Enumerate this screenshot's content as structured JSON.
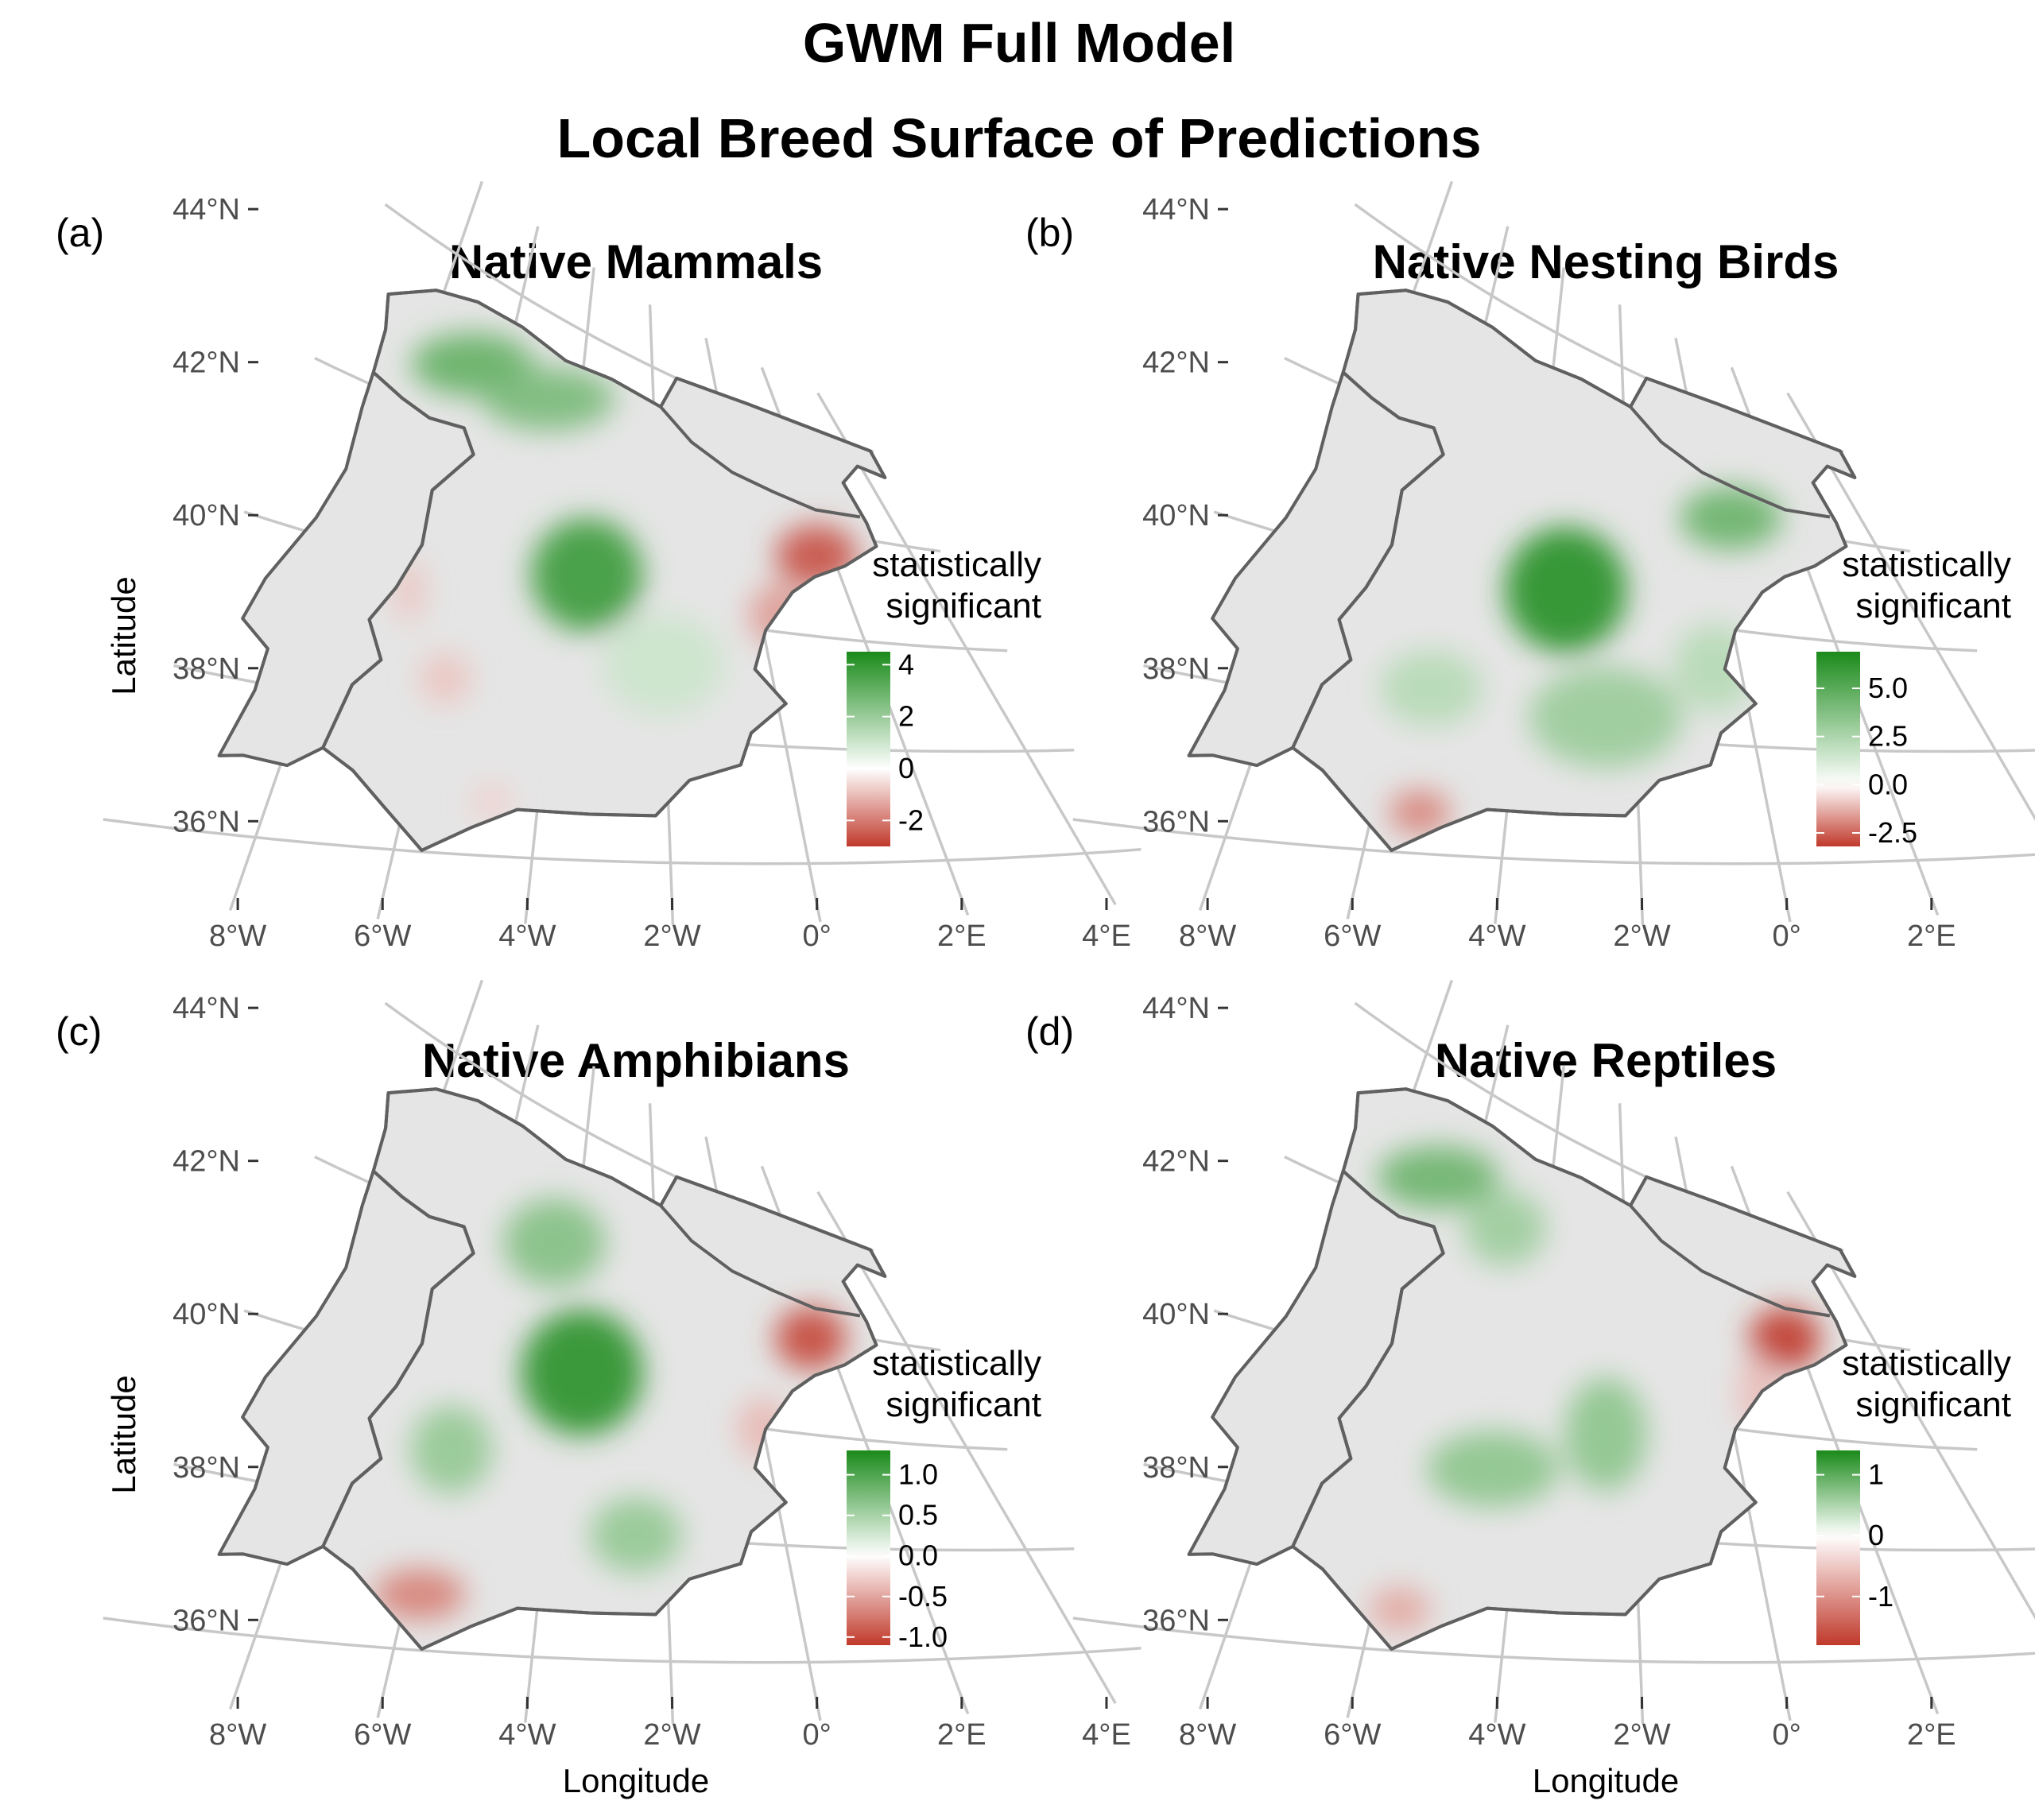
{
  "figure": {
    "title_line1": "GWM Full Model",
    "title_line2": "Local Breed Surface of Predictions"
  },
  "axes": {
    "lat_ticks": [
      "44°N",
      "42°N",
      "40°N",
      "38°N",
      "36°N"
    ],
    "lon_ticks": [
      "8°W",
      "6°W",
      "4°W",
      "2°W",
      "0°",
      "2°E",
      "4°E"
    ],
    "xlabel": "Longitude",
    "ylabel": "Latitude"
  },
  "colors": {
    "positive": "#1a8a1a",
    "negative": "#c0392b",
    "land": "#e5e5e5",
    "border": "#606060",
    "graticule": "#c8c8c8"
  },
  "chart_data": [
    {
      "type": "heatmap",
      "panel": "(a)",
      "title": "Native Mammals",
      "legend_title": [
        "statistically",
        "significant"
      ],
      "legend_ticks": [
        "4",
        "2",
        "0",
        "-2"
      ],
      "scale": {
        "min": -3,
        "max": 4.5
      },
      "tick_values": [
        4,
        2,
        0,
        -2
      ],
      "blobs": [
        {
          "lon": -6.8,
          "lat": 42.8,
          "value": 3.0,
          "sx": 1.2,
          "sy": 0.5
        },
        {
          "lon": -4.8,
          "lat": 42.8,
          "value": 2.6,
          "sx": 1.3,
          "sy": 0.5
        },
        {
          "lon": -3.5,
          "lat": 40.4,
          "value": 3.8,
          "sx": 1.1,
          "sy": 0.9
        },
        {
          "lon": -2.0,
          "lat": 39.2,
          "value": 1.0,
          "sx": 1.2,
          "sy": 0.8
        },
        {
          "lon": 1.6,
          "lat": 41.5,
          "value": -2.6,
          "sx": 0.8,
          "sy": 0.5
        },
        {
          "lon": 0.4,
          "lat": 40.3,
          "value": -1.5,
          "sx": 0.6,
          "sy": 0.5
        },
        {
          "lon": -5.8,
          "lat": 38.5,
          "value": -0.9,
          "sx": 0.5,
          "sy": 0.4
        },
        {
          "lon": -6.8,
          "lat": 39.6,
          "value": -0.9,
          "sx": 0.3,
          "sy": 0.5
        },
        {
          "lon": -4.7,
          "lat": 36.8,
          "value": -0.7,
          "sx": 0.4,
          "sy": 0.3
        }
      ]
    },
    {
      "type": "heatmap",
      "panel": "(b)",
      "title": "Native Nesting Birds",
      "legend_title": [
        "statistically",
        "significant"
      ],
      "legend_ticks": [
        "5.0",
        "2.5",
        "0.0",
        "-2.5"
      ],
      "scale": {
        "min": -3.2,
        "max": 6.9
      },
      "tick_values": [
        5.0,
        2.5,
        0.0,
        -2.5
      ],
      "blobs": [
        {
          "lon": -3.3,
          "lat": 40.2,
          "value": 6.5,
          "sx": 1.2,
          "sy": 1.0
        },
        {
          "lon": -2.5,
          "lat": 38.3,
          "value": 3.0,
          "sx": 1.5,
          "sy": 0.8
        },
        {
          "lon": -5.5,
          "lat": 38.4,
          "value": 2.2,
          "sx": 1.0,
          "sy": 0.6
        },
        {
          "lon": 0.5,
          "lat": 42.0,
          "value": 4.5,
          "sx": 1.0,
          "sy": 0.5
        },
        {
          "lon": -0.5,
          "lat": 39.3,
          "value": 2.2,
          "sx": 0.8,
          "sy": 0.7
        },
        {
          "lon": -5.3,
          "lat": 36.6,
          "value": -2.0,
          "sx": 0.6,
          "sy": 0.35
        }
      ]
    },
    {
      "type": "heatmap",
      "panel": "(c)",
      "title": "Native Amphibians",
      "legend_title": [
        "statistically",
        "significant"
      ],
      "legend_ticks": [
        "1.0",
        "0.5",
        "0.0",
        "-0.5",
        "-1.0"
      ],
      "scale": {
        "min": -1.1,
        "max": 1.3
      },
      "tick_values": [
        1.0,
        0.5,
        0.0,
        -0.5,
        -1.0
      ],
      "blobs": [
        {
          "lon": -3.6,
          "lat": 40.4,
          "value": 1.2,
          "sx": 1.2,
          "sy": 1.0
        },
        {
          "lon": -4.5,
          "lat": 42.2,
          "value": 0.7,
          "sx": 1.0,
          "sy": 0.7
        },
        {
          "lon": -5.8,
          "lat": 38.9,
          "value": 0.6,
          "sx": 0.8,
          "sy": 0.7
        },
        {
          "lon": -2.5,
          "lat": 38.0,
          "value": 0.6,
          "sx": 0.9,
          "sy": 0.6
        },
        {
          "lon": 1.6,
          "lat": 41.8,
          "value": -1.0,
          "sx": 0.7,
          "sy": 0.5
        },
        {
          "lon": 0.0,
          "lat": 40.0,
          "value": -0.4,
          "sx": 0.5,
          "sy": 0.5
        },
        {
          "lon": -5.8,
          "lat": 36.8,
          "value": -0.7,
          "sx": 0.9,
          "sy": 0.4
        }
      ]
    },
    {
      "type": "heatmap",
      "panel": "(d)",
      "title": "Native Reptiles",
      "legend_title": [
        "statistically",
        "significant"
      ],
      "legend_ticks": [
        "1",
        "0",
        "-1"
      ],
      "scale": {
        "min": -1.8,
        "max": 1.4
      },
      "tick_values": [
        1,
        0,
        -1
      ],
      "blobs": [
        {
          "lon": -6.8,
          "lat": 42.6,
          "value": 0.9,
          "sx": 1.2,
          "sy": 0.5
        },
        {
          "lon": -5.0,
          "lat": 42.3,
          "value": 0.6,
          "sx": 0.8,
          "sy": 0.6
        },
        {
          "lon": -4.5,
          "lat": 38.8,
          "value": 0.7,
          "sx": 1.3,
          "sy": 0.6
        },
        {
          "lon": -2.5,
          "lat": 39.6,
          "value": 0.7,
          "sx": 0.8,
          "sy": 0.9
        },
        {
          "lon": 1.7,
          "lat": 41.8,
          "value": -1.8,
          "sx": 0.7,
          "sy": 0.5
        },
        {
          "lon": 0.7,
          "lat": 40.7,
          "value": -0.6,
          "sx": 0.4,
          "sy": 0.6
        },
        {
          "lon": -5.6,
          "lat": 36.6,
          "value": -0.8,
          "sx": 0.6,
          "sy": 0.35
        }
      ]
    }
  ]
}
